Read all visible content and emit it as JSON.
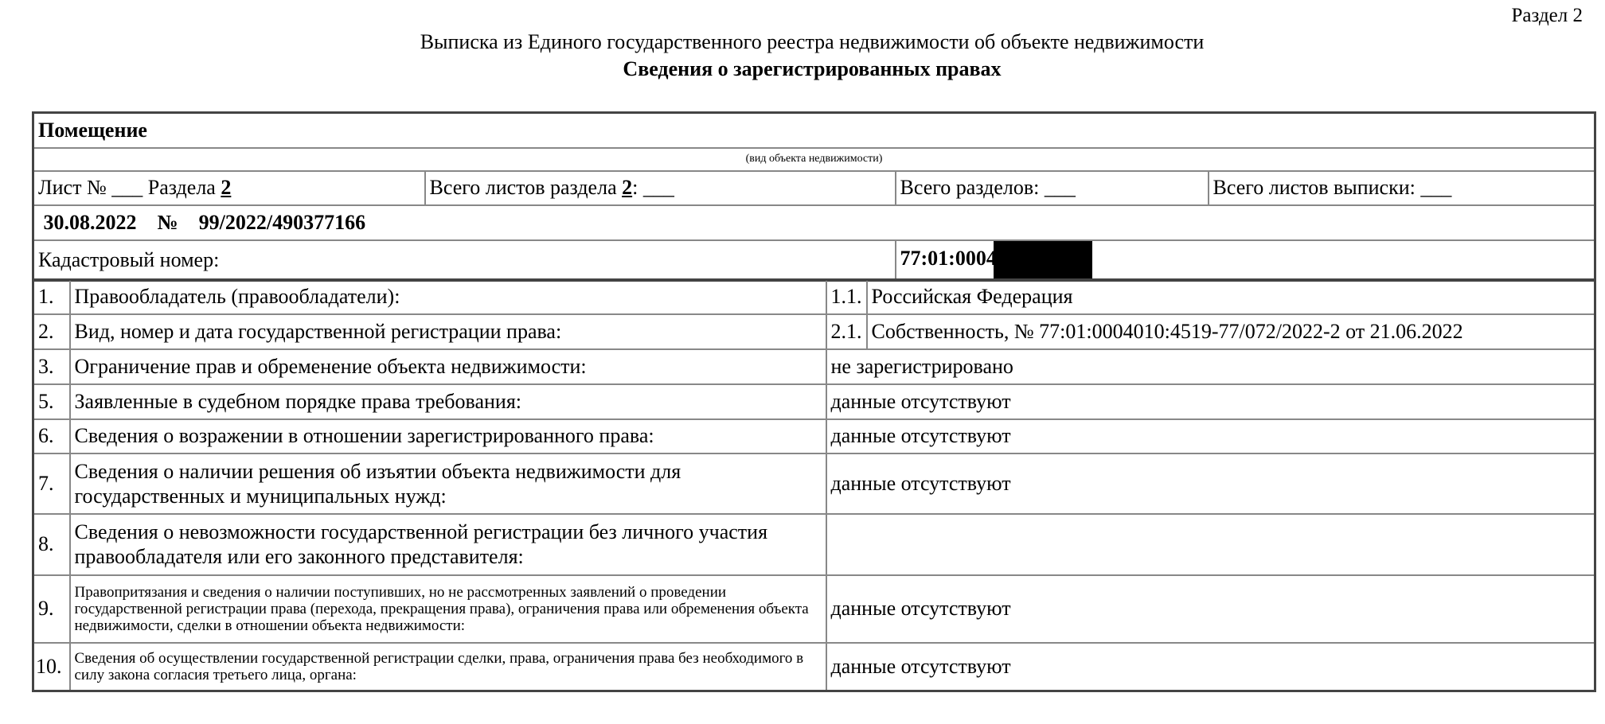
{
  "header": {
    "section_label": "Раздел 2",
    "title": "Выписка из Единого государственного реестра недвижимости об объекте недвижимости",
    "subtitle": "Сведения о зарегистрированных правах"
  },
  "object": {
    "type": "Помещение",
    "type_caption": "(вид объекта недвижимости)",
    "sheet_label": "Лист № ___ Раздела",
    "sheet_section": "2",
    "total_sheets_label": "Всего листов раздела",
    "total_sheets_section": "2",
    "total_sheets_suffix": ": ___",
    "total_sections": "Всего разделов: ___",
    "total_extract_sheets": "Всего листов выписки: ___",
    "date": "30.08.2022",
    "number_sign": "№",
    "number": "99/2022/490377166",
    "cadastral_label": "Кадастровый номер:",
    "cadastral_value": "77:01:0004"
  },
  "rows": [
    {
      "num": "1.",
      "label": "Правообладатель (правообладатели):",
      "sub": "1.1.",
      "value": "Российская Федерация"
    },
    {
      "num": "2.",
      "label": "Вид, номер и дата государственной регистрации права:",
      "sub": "2.1.",
      "value": "Собственность, № 77:01:0004010:4519-77/072/2022-2 от 21.06.2022"
    },
    {
      "num": "3.",
      "label": "Ограничение прав и обременение объекта недвижимости:",
      "value": "не зарегистрировано"
    },
    {
      "num": "5.",
      "label": "Заявленные в судебном порядке права требования:",
      "value": "данные отсутствуют"
    },
    {
      "num": "6.",
      "label": "Сведения о возражении в отношении зарегистрированного права:",
      "value": "данные отсутствуют"
    },
    {
      "num": "7.",
      "label": "Сведения о наличии решения об изъятии объекта недвижимости для государственных и муниципальных нужд:",
      "value": "данные отсутствуют"
    },
    {
      "num": "8.",
      "label": "Сведения о невозможности государственной регистрации без личного участия правообладателя или его законного представителя:",
      "value": ""
    },
    {
      "num": "9.",
      "label": "Правопритязания и сведения о наличии поступивших, но не рассмотренных заявлений о проведении государственной регистрации права (перехода, прекращения права), ограничения права или обременения объекта недвижимости, сделки в отношении объекта недвижимости:",
      "value": "данные отсутствуют"
    },
    {
      "num": "10.",
      "label": "Сведения об осуществлении государственной регистрации сделки, права, ограничения права без необходимого в силу закона согласия третьего лица, органа:",
      "value": "данные отсутствуют"
    }
  ]
}
